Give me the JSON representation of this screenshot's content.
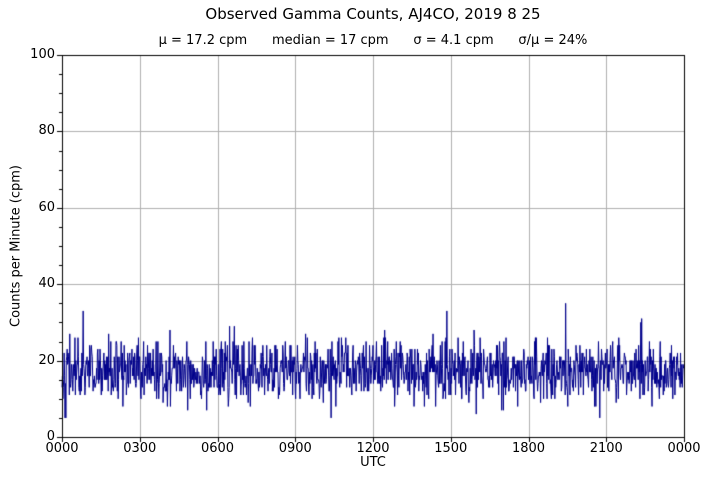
{
  "chart_data": {
    "type": "line",
    "title": "Observed Gamma Counts, AJ4CO, 2019 8 25",
    "stats_text": "μ = 17.2 cpm      median = 17 cpm      σ = 4.1 cpm      σ/μ = 24%",
    "stats": {
      "mean_cpm": 17.2,
      "median_cpm": 17,
      "sigma_cpm": 4.1,
      "sigma_over_mean_pct": 24
    },
    "xlabel": "UTC",
    "ylabel": "Counts per Minute (cpm)",
    "x_axis": {
      "units": "minutes UTC",
      "range_minutes": [
        0,
        1440
      ],
      "major_tick_every_minutes": 180,
      "tick_labels": [
        "0000",
        "0300",
        "0600",
        "0900",
        "1200",
        "1500",
        "1800",
        "2100",
        "0000"
      ]
    },
    "y_axis": {
      "lim": [
        0,
        100
      ],
      "major_ticks": [
        0,
        20,
        40,
        60,
        80,
        100
      ],
      "minor_tick_step": 5
    },
    "grid": {
      "show": true,
      "color": "#b0b0b0"
    },
    "legend": {
      "show": false
    },
    "series": {
      "name": "observed gamma counts",
      "line_color": "#00008B",
      "samples_per_day": 1440,
      "baseline_mean_cpm": 17.2,
      "baseline_sigma_cpm": 4.1,
      "observed_min_cpm": 5,
      "observed_max_cpm": 35,
      "notable_peaks": [
        {
          "minute": 49,
          "cpm": 33
        },
        {
          "minute": 891,
          "cpm": 33
        },
        {
          "minute": 1166,
          "cpm": 35
        },
        {
          "minute": 1342,
          "cpm": 31
        }
      ],
      "notable_dips": [
        {
          "minute": 7,
          "cpm": 5
        }
      ]
    }
  }
}
